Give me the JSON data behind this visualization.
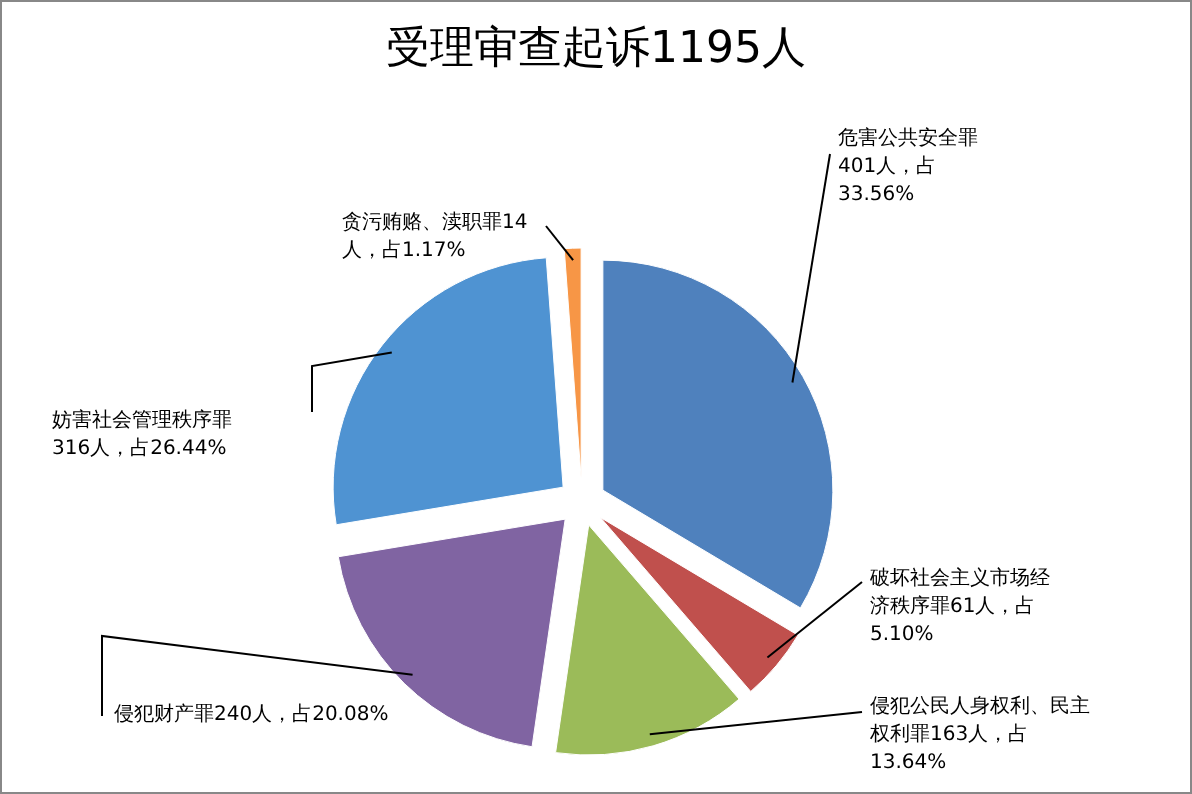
{
  "chart_data": {
    "type": "pie",
    "title": "受理审查起诉1195人",
    "categories": [
      "危害公共安全罪",
      "破坏社会主义市场经济秩序罪",
      "侵犯公民人身权利、民主权利罪",
      "侵犯财产罪",
      "妨害社会管理秩序罪",
      "贪污贿赂、渎职罪"
    ],
    "values": [
      401,
      61,
      163,
      240,
      316,
      14
    ],
    "value_labels": [
      "401人，占33.56%",
      "61人，占5.10%",
      "163人，占13.64%",
      "240人，占20.08%",
      "316人，占26.44%",
      "14人，占1.17%"
    ],
    "colors": [
      "#4f81bd",
      "#c0504d",
      "#9bbb59",
      "#8064a2",
      "#4f93d2",
      "#f79646"
    ]
  }
}
